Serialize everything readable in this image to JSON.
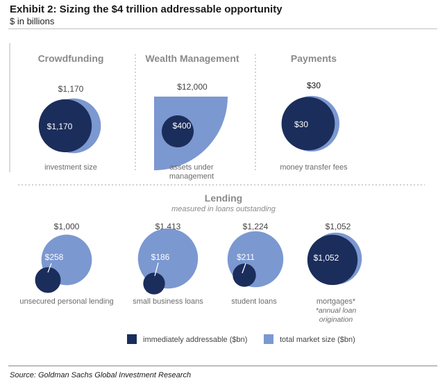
{
  "title": "Exhibit 2: Sizing the $4 trillion addressable opportunity",
  "subtitle": "$ in billions",
  "source": "Source: Goldman Sachs Global Investment Research",
  "colors": {
    "dark": "#1b2d5b",
    "light": "#7b98d1",
    "divider": "#b5b5b5",
    "text": "#3c3c3c"
  },
  "chart_data": {
    "type": "proportional-bubble",
    "units": "$ in billions",
    "lending_heading": "Lending",
    "lending_subheading": "measured in loans outstanding",
    "legend": [
      "immediately addressable ($bn)",
      "total market size ($bn)"
    ],
    "categories": [
      {
        "group": "Crowdfunding",
        "label": "investment size",
        "total": 1170,
        "addressable": 1170,
        "total_label": "$1,170",
        "addressable_label": "$1,170"
      },
      {
        "group": "Wealth Management",
        "label": "assets under management",
        "label_lines": [
          "assets under",
          "management"
        ],
        "total": 12000,
        "addressable": 400,
        "total_label": "$12,000",
        "addressable_label": "$400"
      },
      {
        "group": "Payments",
        "label": "money transfer fees",
        "total": 30,
        "addressable": 30,
        "total_label": "$30",
        "addressable_label": "$30"
      },
      {
        "group": "Lending",
        "label": "unsecured personal lending",
        "total": 1000,
        "addressable": 258,
        "total_label": "$1,000",
        "addressable_label": "$258"
      },
      {
        "group": "Lending",
        "label": "small business loans",
        "total": 1413,
        "addressable": 186,
        "total_label": "$1,413",
        "addressable_label": "$186"
      },
      {
        "group": "Lending",
        "label": "student loans",
        "total": 1224,
        "addressable": 211,
        "total_label": "$1,224",
        "addressable_label": "$211"
      },
      {
        "group": "Lending",
        "label": "mortgages*",
        "total": 1052,
        "addressable": 1052,
        "total_label": "$1,052",
        "addressable_label": "$1,052",
        "note_lines": [
          "*annual loan",
          "origination"
        ]
      }
    ]
  }
}
